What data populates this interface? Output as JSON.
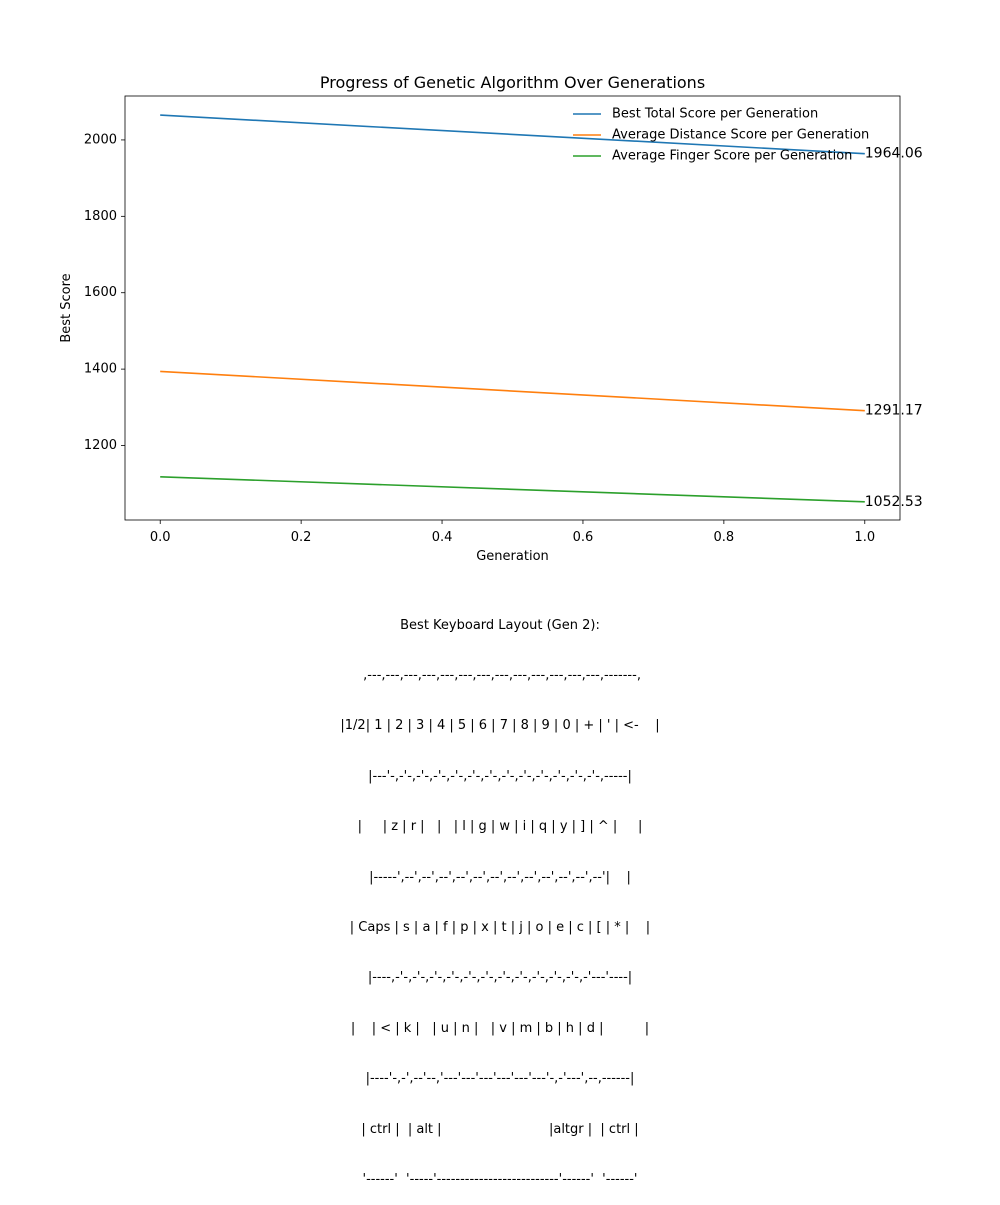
{
  "chart_data": {
    "type": "line",
    "title": "Progress of Genetic Algorithm Over Generations",
    "xlabel": "Generation",
    "ylabel": "Best Score",
    "xlim": [
      -0.05,
      1.05
    ],
    "ylim": [
      1005,
      2115
    ],
    "x_ticks": [
      0.0,
      0.2,
      0.4,
      0.6,
      0.8,
      1.0
    ],
    "x_tick_labels": [
      "0.0",
      "0.2",
      "0.4",
      "0.6",
      "0.8",
      "1.0"
    ],
    "y_ticks": [
      1200,
      1400,
      1600,
      1800,
      2000
    ],
    "y_tick_labels": [
      "1200",
      "1400",
      "1600",
      "1800",
      "2000"
    ],
    "grid": false,
    "legend_position": "top-right",
    "x": [
      0,
      1
    ],
    "series": [
      {
        "name": "Best Total Score per Generation",
        "color": "#1f77b4",
        "values": [
          2065,
          1964.06
        ],
        "end_label": "1964.06"
      },
      {
        "name": "Average Distance Score per Generation",
        "color": "#ff7f0e",
        "values": [
          1394,
          1291.17
        ],
        "end_label": "1291.17"
      },
      {
        "name": "Average Finger Score per Generation",
        "color": "#2ca02c",
        "values": [
          1118,
          1052.53
        ],
        "end_label": "1052.53"
      }
    ]
  },
  "keyboard_layout": {
    "title": "Best Keyboard Layout (Gen 2):",
    "lines": [
      " ,---,---,---,---,---,---,---,---,---,---,---,---,---,-------,",
      "|1/2| 1 | 2 | 3 | 4 | 5 | 6 | 7 | 8 | 9 | 0 | + | ' | <-    |",
      "|---'-,-'-,-'-,-'-,-'-,-'-,-'-,-'-,-'-,-'-,-'-,-'-,-'-,-----|",
      "|     | z | r |   |   | l | g | w | i | q | y | ] | ^ |     |",
      "|-----',--',--',--',--',--',--',--',--',--',--',--',--'|    |",
      "| Caps | s | a | f | p | x | t | j | o | e | c | [ | * |    |",
      "|----,-'-,-'-,-'-,-'-,-'-,-'-,-'-,-'-,-'-,-'-,-'-,-'---'----|",
      "|    | < | k |   | u | n |   | v | m | b | h | d |          |",
      "|----'-,-',--'--,'---'---'---'---'---'---'-,-'---',--,------|",
      "| ctrl |  | alt |                          |altgr |  | ctrl |",
      "'------'  '-----'--------------------------'------'  '------'"
    ]
  }
}
